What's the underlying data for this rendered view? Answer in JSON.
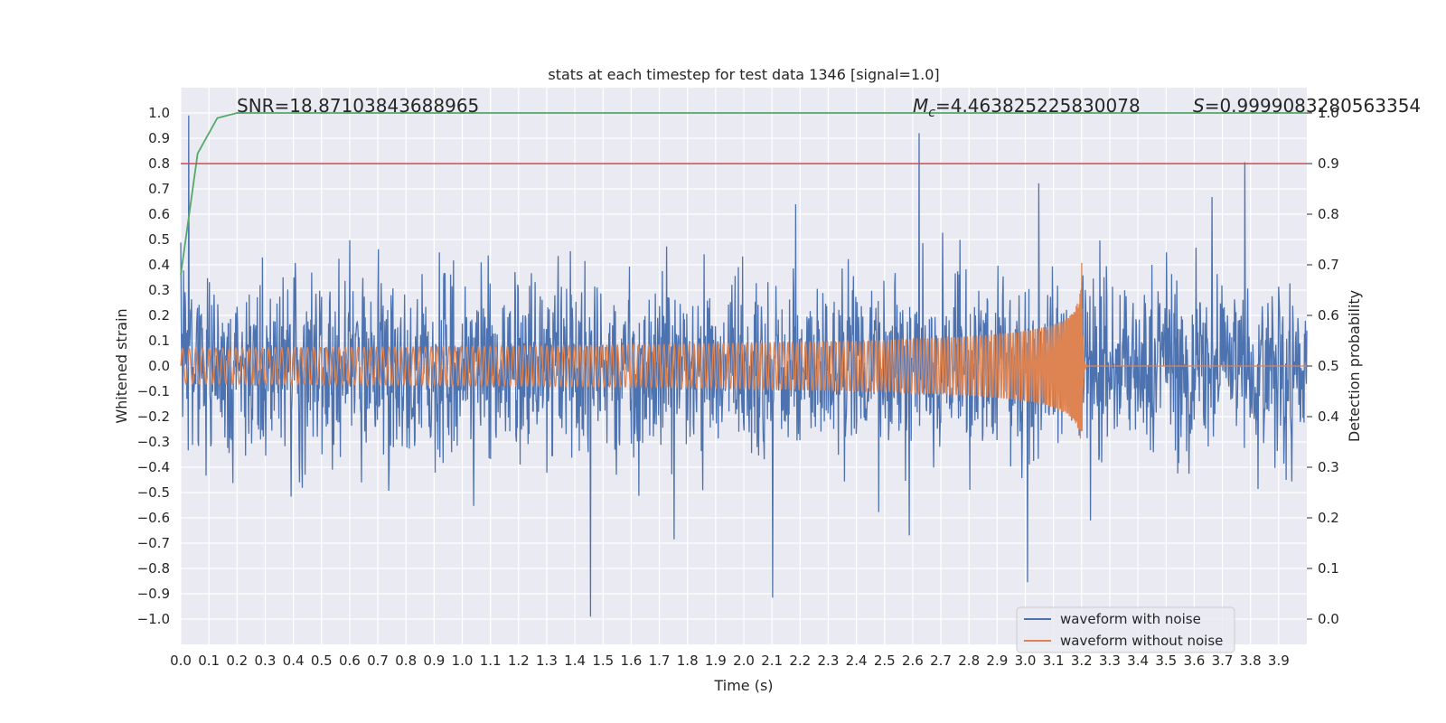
{
  "chart_data": {
    "type": "line",
    "title": "stats at each timestep for test data 1346 [signal=1.0]",
    "xlabel": "Time (s)",
    "ylabel": "Whitened strain",
    "y2label": "Detection probability",
    "xlim": [
      0.0,
      4.0
    ],
    "ylim": [
      -1.1,
      1.1
    ],
    "y2lim": [
      -0.05,
      1.05
    ],
    "xticks": [
      "0.0",
      "0.1",
      "0.2",
      "0.3",
      "0.4",
      "0.5",
      "0.6",
      "0.7",
      "0.8",
      "0.9",
      "1.0",
      "1.1",
      "1.2",
      "1.3",
      "1.4",
      "1.5",
      "1.6",
      "1.7",
      "1.8",
      "1.9",
      "2.0",
      "2.1",
      "2.2",
      "2.3",
      "2.4",
      "2.5",
      "2.6",
      "2.7",
      "2.8",
      "2.9",
      "3.0",
      "3.1",
      "3.2",
      "3.3",
      "3.4",
      "3.5",
      "3.6",
      "3.7",
      "3.8",
      "3.9"
    ],
    "yticks": [
      "1.0",
      "0.9",
      "0.8",
      "0.7",
      "0.6",
      "0.5",
      "0.4",
      "0.3",
      "0.2",
      "0.1",
      "0.0",
      "−0.1",
      "−0.2",
      "−0.3",
      "−0.4",
      "−0.5",
      "−0.6",
      "−0.7",
      "−0.8",
      "−0.9",
      "−1.0"
    ],
    "y2ticks": [
      "1.0",
      "0.9",
      "0.8",
      "0.7",
      "0.6",
      "0.5",
      "0.4",
      "0.3",
      "0.2",
      "0.1",
      "0.0"
    ],
    "threshold": 0.9,
    "series": [
      {
        "name": "waveform with noise",
        "color": "#4c72b0",
        "description_value": "noisy whitened strain, mostly within ±0.4 with spikes near ±0.9"
      },
      {
        "name": "waveform without noise",
        "color": "#dd8452",
        "chirp_start_amplitude": 0.07,
        "merger_time": 3.2,
        "peak_amplitude": 0.48
      },
      {
        "name": "detection probability",
        "color": "#55a868",
        "x": [
          0.0,
          0.06,
          0.13,
          0.2,
          0.3,
          4.0
        ],
        "values": [
          0.68,
          0.92,
          0.99,
          1.0,
          1.0,
          1.0
        ]
      }
    ],
    "annotations": {
      "snr_text": "SNR=18.87103843688965",
      "mc_symbol": "M",
      "mc_subscript": "c",
      "mc_value": "=4.463825225830078",
      "s_symbol": "S",
      "s_value": "=0.9999083280563354"
    },
    "legend_position": "lower-right"
  }
}
